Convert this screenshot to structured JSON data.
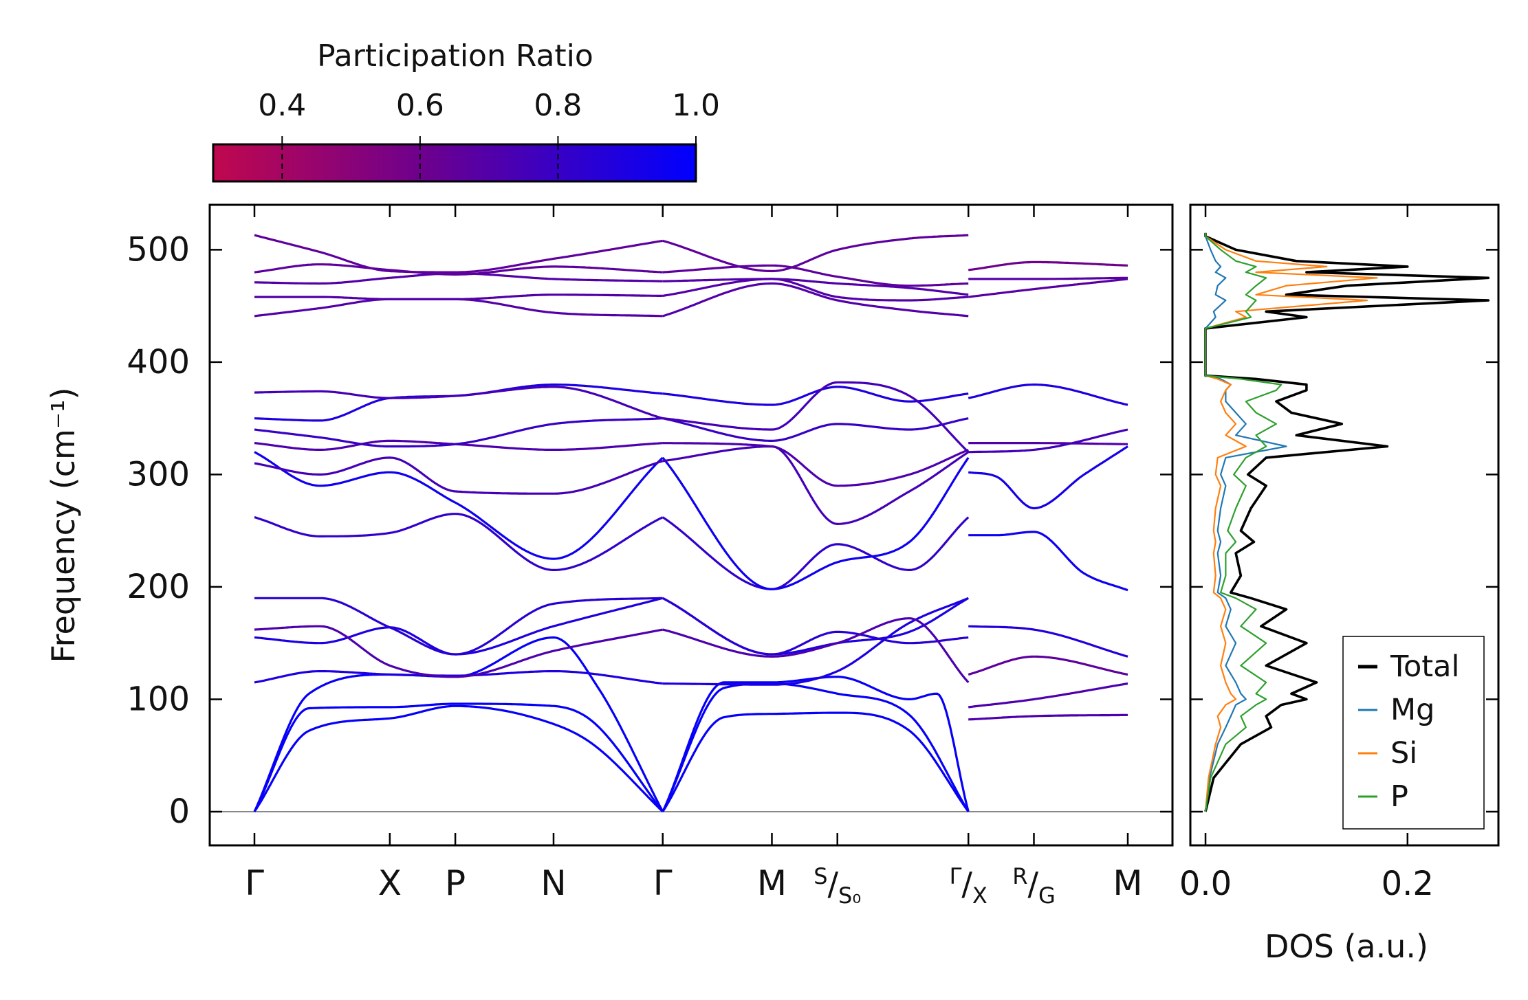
{
  "figure": {
    "title": ""
  },
  "colors": {
    "pr_low": "#c0084e",
    "pr_high": "#0000ff",
    "total": "#000000",
    "mg": "#1f77b4",
    "si": "#ff7f0e",
    "p": "#2ca02c"
  },
  "chart_data": [
    {
      "id": "colorbar",
      "type": "heatmap",
      "title": "Participation Ratio",
      "range": [
        0.3,
        1.0
      ],
      "tick_values": [
        0.4,
        0.6,
        0.8,
        1.0
      ],
      "tick_labels": [
        "0.4",
        "0.6",
        "0.8",
        "1.0"
      ]
    },
    {
      "id": "dispersion",
      "type": "line",
      "ylabel": "Frequency (cm⁻¹)",
      "ylim": [
        -30,
        540
      ],
      "yticks": [
        0,
        100,
        200,
        300,
        400,
        500
      ],
      "ytick_labels": [
        "0",
        "100",
        "200",
        "300",
        "400",
        "500"
      ],
      "path_positions": [
        0,
        1.24,
        1.84,
        2.74,
        3.74,
        4.74,
        5.34,
        6.54,
        7.14,
        8.0
      ],
      "path_labels": [
        "Γ",
        "X",
        "P",
        "N",
        "Γ",
        "M",
        "S/S₀",
        "Γ/X",
        "R/G",
        "M"
      ],
      "segment_breaks": [
        3.74,
        6.54
      ],
      "band_sets": [
        {
          "name": "acoustic-TA1",
          "pr": 0.98,
          "x": [
            0,
            0.5,
            1.24,
            1.84,
            2.74,
            3.1,
            3.74,
            4.3,
            4.74,
            5.34,
            6.0,
            6.54
          ],
          "y": [
            0,
            72,
            83,
            94,
            78,
            60,
            0,
            84,
            87,
            88,
            72,
            0
          ]
        },
        {
          "name": "acoustic-TA2",
          "pr": 0.98,
          "x": [
            0,
            0.5,
            1.24,
            1.84,
            2.74,
            3.1,
            3.74,
            4.3,
            4.74,
            5.34,
            6.0,
            6.54
          ],
          "y": [
            0,
            92,
            93,
            96,
            94,
            80,
            0,
            110,
            114,
            105,
            86,
            0
          ]
        },
        {
          "name": "acoustic-LA",
          "pr": 0.98,
          "x": [
            0,
            0.5,
            1.24,
            1.84,
            2.74,
            3.15,
            3.74,
            4.3,
            4.74,
            5.34,
            6.0,
            6.25,
            6.54
          ],
          "y": [
            0,
            105,
            122,
            120,
            155,
            110,
            0,
            115,
            115,
            120,
            100,
            105,
            0
          ]
        },
        {
          "name": "optical-low-1",
          "pr": 0.9,
          "x": [
            0,
            0.6,
            1.24,
            1.84,
            2.74,
            3.74,
            4.74,
            5.34,
            6.0,
            6.54
          ],
          "y": [
            115,
            125,
            122,
            121,
            125,
            114,
            113,
            125,
            168,
            190
          ]
        },
        {
          "name": "optical-low-2",
          "pr": 0.9,
          "x": [
            0,
            0.6,
            1.24,
            1.84,
            2.74,
            3.74,
            4.74,
            5.34,
            6.0,
            6.54
          ],
          "y": [
            155,
            150,
            164,
            140,
            165,
            190,
            140,
            150,
            160,
            190
          ]
        },
        {
          "name": "optical-low-3",
          "pr": 0.85,
          "x": [
            0,
            0.6,
            1.24,
            1.84,
            2.74,
            3.74,
            4.74,
            5.34,
            6.0,
            6.54
          ],
          "y": [
            190,
            190,
            164,
            140,
            185,
            190,
            140,
            160,
            150,
            155
          ]
        },
        {
          "name": "optical-low-4",
          "pr": 0.72,
          "x": [
            0,
            0.6,
            1.24,
            1.84,
            2.74,
            3.74,
            4.74,
            5.34,
            6.0,
            6.54
          ],
          "y": [
            162,
            165,
            130,
            120,
            143,
            162,
            138,
            150,
            172,
            115
          ]
        },
        {
          "name": "optical-mid-1",
          "pr": 0.82,
          "x": [
            0,
            0.6,
            1.24,
            1.84,
            2.74,
            3.74,
            4.74,
            5.34,
            6.0,
            6.54
          ],
          "y": [
            262,
            245,
            248,
            265,
            215,
            262,
            198,
            238,
            215,
            262
          ]
        },
        {
          "name": "optical-mid-2",
          "pr": 0.95,
          "x": [
            0,
            0.6,
            1.24,
            1.84,
            2.74,
            3.74,
            4.74,
            5.34,
            6.0,
            6.54
          ],
          "y": [
            320,
            290,
            302,
            275,
            225,
            315,
            198,
            222,
            240,
            315
          ]
        },
        {
          "name": "optical-mid-3",
          "pr": 0.75,
          "x": [
            0,
            0.6,
            1.24,
            1.84,
            2.74,
            3.74,
            4.74,
            5.34,
            6.0,
            6.54
          ],
          "y": [
            310,
            300,
            315,
            285,
            283,
            312,
            325,
            256,
            285,
            320
          ]
        },
        {
          "name": "optical-mid-4",
          "pr": 0.72,
          "x": [
            0,
            0.6,
            1.24,
            1.84,
            2.74,
            3.74,
            4.74,
            5.34,
            6.0,
            6.54
          ],
          "y": [
            328,
            322,
            330,
            327,
            322,
            328,
            325,
            290,
            300,
            322
          ]
        },
        {
          "name": "optical-mid-5",
          "pr": 0.8,
          "x": [
            0,
            0.6,
            1.24,
            1.84,
            2.74,
            3.74,
            4.74,
            5.34,
            6.0,
            6.54
          ],
          "y": [
            340,
            333,
            325,
            327,
            345,
            350,
            330,
            345,
            340,
            350
          ]
        },
        {
          "name": "optical-mid-6",
          "pr": 0.9,
          "x": [
            0,
            0.6,
            1.24,
            1.84,
            2.74,
            3.74,
            4.74,
            5.34,
            6.0,
            6.54
          ],
          "y": [
            350,
            348,
            368,
            370,
            380,
            372,
            362,
            378,
            365,
            372
          ]
        },
        {
          "name": "optical-mid-7",
          "pr": 0.75,
          "x": [
            0,
            0.6,
            1.24,
            1.84,
            2.74,
            3.74,
            4.74,
            5.34,
            6.0,
            6.54
          ],
          "y": [
            373,
            374,
            368,
            370,
            378,
            350,
            340,
            382,
            370,
            320
          ]
        },
        {
          "name": "optical-high-1",
          "pr": 0.7,
          "x": [
            0,
            0.6,
            1.24,
            1.84,
            2.74,
            3.74,
            4.74,
            5.34,
            6.0,
            6.54
          ],
          "y": [
            441,
            448,
            456,
            456,
            444,
            441,
            470,
            455,
            446,
            441
          ]
        },
        {
          "name": "optical-high-2",
          "pr": 0.7,
          "x": [
            0,
            0.6,
            1.24,
            1.84,
            2.74,
            3.74,
            4.74,
            5.34,
            6.0,
            6.54
          ],
          "y": [
            458,
            458,
            456,
            456,
            460,
            459,
            474,
            458,
            455,
            458
          ]
        },
        {
          "name": "optical-high-3",
          "pr": 0.7,
          "x": [
            0,
            0.6,
            1.24,
            1.84,
            2.74,
            3.74,
            4.74,
            5.34,
            6.0,
            6.54
          ],
          "y": [
            471,
            470,
            475,
            479,
            474,
            472,
            474,
            470,
            466,
            460
          ]
        },
        {
          "name": "optical-high-4",
          "pr": 0.66,
          "x": [
            0,
            0.6,
            1.24,
            1.84,
            2.74,
            3.74,
            4.74,
            5.34,
            6.0,
            6.54
          ],
          "y": [
            480,
            487,
            482,
            478,
            485,
            480,
            486,
            476,
            468,
            470
          ]
        },
        {
          "name": "optical-high-5",
          "pr": 0.66,
          "x": [
            0,
            0.6,
            1.24,
            1.84,
            2.74,
            3.74,
            4.74,
            5.34,
            6.0,
            6.54
          ],
          "y": [
            513,
            498,
            481,
            480,
            492,
            508,
            481,
            500,
            510,
            513
          ]
        },
        {
          "name": "seg3-b1",
          "pr": 0.72,
          "x": [
            6.54,
            7.14,
            8.0
          ],
          "y": [
            82,
            85,
            86
          ]
        },
        {
          "name": "seg3-b2",
          "pr": 0.72,
          "x": [
            6.54,
            7.14,
            8.0
          ],
          "y": [
            93,
            100,
            114
          ]
        },
        {
          "name": "seg3-b3",
          "pr": 0.66,
          "x": [
            6.54,
            7.14,
            8.0
          ],
          "y": [
            122,
            138,
            122
          ]
        },
        {
          "name": "seg3-b4",
          "pr": 0.88,
          "x": [
            6.54,
            7.14,
            8.0
          ],
          "y": [
            165,
            162,
            138
          ]
        },
        {
          "name": "seg3-b5",
          "pr": 0.95,
          "x": [
            6.54,
            6.8,
            7.14,
            7.6,
            8.0
          ],
          "y": [
            246,
            246,
            249,
            212,
            197
          ]
        },
        {
          "name": "seg3-b6",
          "pr": 0.92,
          "x": [
            6.54,
            6.8,
            7.14,
            7.6,
            8.0
          ],
          "y": [
            302,
            298,
            270,
            300,
            325
          ]
        },
        {
          "name": "seg3-b7",
          "pr": 0.7,
          "x": [
            6.54,
            7.14,
            8.0
          ],
          "y": [
            328,
            328,
            327
          ]
        },
        {
          "name": "seg3-b8",
          "pr": 0.75,
          "x": [
            6.54,
            7.14,
            8.0
          ],
          "y": [
            320,
            322,
            340
          ]
        },
        {
          "name": "seg3-b9",
          "pr": 0.9,
          "x": [
            6.54,
            7.14,
            8.0
          ],
          "y": [
            368,
            380,
            362
          ]
        },
        {
          "name": "seg3-b10",
          "pr": 0.68,
          "x": [
            6.54,
            7.14,
            8.0
          ],
          "y": [
            458,
            465,
            474
          ]
        },
        {
          "name": "seg3-b11",
          "pr": 0.68,
          "x": [
            6.54,
            7.14,
            8.0
          ],
          "y": [
            474,
            474,
            475
          ]
        },
        {
          "name": "seg3-b12",
          "pr": 0.6,
          "x": [
            6.54,
            7.14,
            8.0
          ],
          "y": [
            482,
            489,
            486
          ]
        }
      ]
    },
    {
      "id": "dos",
      "type": "line",
      "xlabel": "DOS (a.u.)",
      "xlim": [
        -0.015,
        0.29
      ],
      "ylim": [
        -30,
        540
      ],
      "xticks": [
        0.0,
        0.2
      ],
      "xtick_labels": [
        "0.0",
        "0.2"
      ],
      "legend_location": "lower-right",
      "freq": [
        0,
        30,
        60,
        75,
        85,
        95,
        100,
        105,
        115,
        130,
        150,
        165,
        180,
        190,
        195,
        210,
        230,
        240,
        250,
        270,
        290,
        300,
        315,
        325,
        335,
        345,
        355,
        365,
        375,
        380,
        385,
        388,
        395,
        430,
        440,
        445,
        455,
        460,
        468,
        475,
        480,
        485,
        490,
        500,
        512,
        515
      ],
      "series": [
        {
          "name": "Total",
          "values": [
            0,
            0.008,
            0.035,
            0.065,
            0.06,
            0.075,
            0.1,
            0.085,
            0.11,
            0.06,
            0.1,
            0.055,
            0.08,
            0.045,
            0.025,
            0.035,
            0.03,
            0.048,
            0.035,
            0.045,
            0.06,
            0.042,
            0.06,
            0.18,
            0.09,
            0.135,
            0.085,
            0.07,
            0.1,
            0.1,
            0.05,
            0.0,
            0.0,
            0.0,
            0.1,
            0.06,
            0.28,
            0.08,
            0.14,
            0.28,
            0.1,
            0.2,
            0.09,
            0.03,
            0.0,
            0.0
          ]
        },
        {
          "name": "Mg",
          "values": [
            0,
            0.004,
            0.012,
            0.02,
            0.025,
            0.03,
            0.04,
            0.035,
            0.03,
            0.02,
            0.03,
            0.02,
            0.025,
            0.02,
            0.012,
            0.015,
            0.012,
            0.015,
            0.012,
            0.015,
            0.02,
            0.015,
            0.02,
            0.08,
            0.03,
            0.04,
            0.03,
            0.02,
            0.02,
            0.025,
            0.015,
            0.0,
            0.0,
            0.0,
            0.01,
            0.008,
            0.02,
            0.01,
            0.012,
            0.02,
            0.01,
            0.015,
            0.01,
            0.005,
            0.0,
            0.0
          ]
        },
        {
          "name": "Si",
          "values": [
            0,
            0.003,
            0.01,
            0.015,
            0.012,
            0.02,
            0.03,
            0.025,
            0.02,
            0.015,
            0.02,
            0.015,
            0.02,
            0.015,
            0.008,
            0.01,
            0.008,
            0.01,
            0.008,
            0.01,
            0.015,
            0.01,
            0.012,
            0.04,
            0.02,
            0.03,
            0.02,
            0.015,
            0.02,
            0.025,
            0.012,
            0.0,
            0.0,
            0.0,
            0.04,
            0.03,
            0.16,
            0.05,
            0.08,
            0.17,
            0.05,
            0.12,
            0.05,
            0.02,
            0.0,
            0.0
          ]
        },
        {
          "name": "P",
          "values": [
            0,
            0.005,
            0.02,
            0.04,
            0.035,
            0.05,
            0.06,
            0.05,
            0.06,
            0.035,
            0.06,
            0.035,
            0.05,
            0.03,
            0.015,
            0.02,
            0.02,
            0.03,
            0.022,
            0.03,
            0.04,
            0.028,
            0.04,
            0.06,
            0.05,
            0.07,
            0.05,
            0.04,
            0.07,
            0.075,
            0.035,
            0.0,
            0.0,
            0.0,
            0.045,
            0.04,
            0.05,
            0.04,
            0.05,
            0.06,
            0.04,
            0.05,
            0.03,
            0.015,
            0.0,
            0.0
          ]
        }
      ]
    }
  ]
}
